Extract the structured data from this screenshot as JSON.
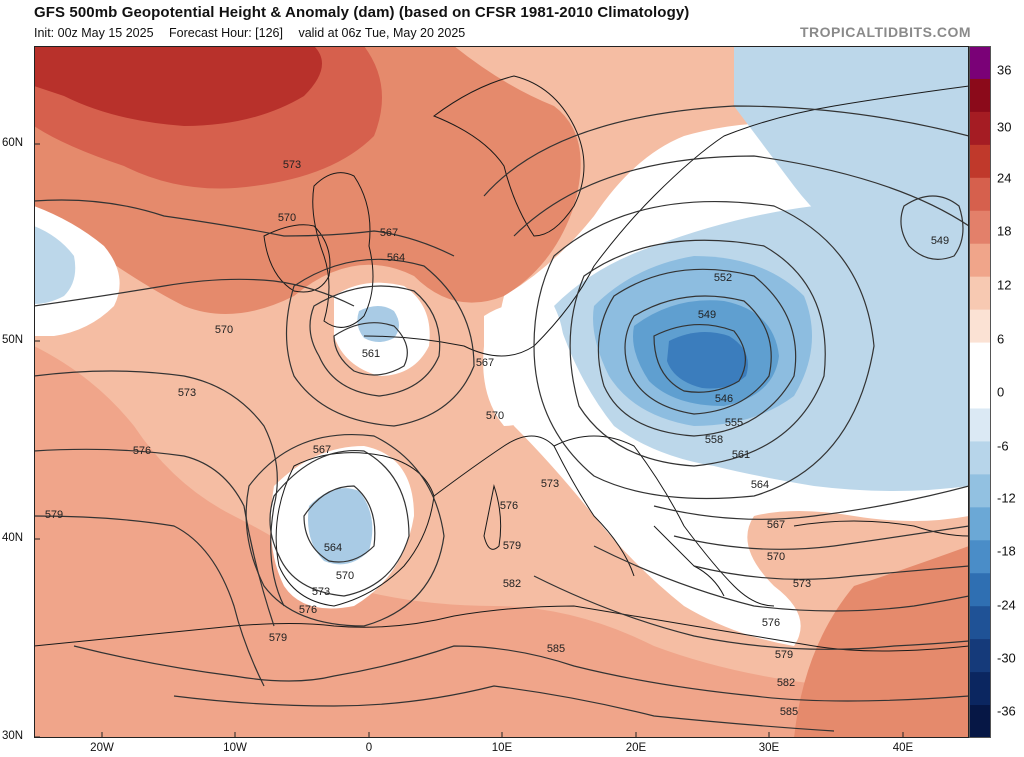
{
  "header": {
    "title": "GFS 500mb Geopotential Height & Anomaly (dam) (based on CFSR 1981-2010 Climatology)",
    "init": "Init: 00z May 15 2025",
    "forecast_hour": "Forecast Hour: [126]",
    "valid": "valid at 06z Tue, May 20 2025",
    "brand": "TROPICALTIDBITS.COM"
  },
  "axes": {
    "lat_labels": [
      "60N",
      "50N",
      "40N",
      "30N"
    ],
    "lon_labels": [
      "20W",
      "10W",
      "0",
      "10E",
      "20E",
      "30E",
      "40E"
    ]
  },
  "contours": {
    "labels": [
      "573",
      "570",
      "567",
      "564",
      "561",
      "570",
      "573",
      "576",
      "579",
      "567",
      "564",
      "570",
      "573",
      "576",
      "579",
      "567",
      "570",
      "573",
      "576",
      "579",
      "582",
      "585",
      "552",
      "549",
      "546",
      "555",
      "558",
      "561",
      "564",
      "567",
      "570",
      "573",
      "576",
      "579",
      "582",
      "585",
      "549"
    ]
  },
  "colorbar": {
    "labels": [
      "36",
      "30",
      "24",
      "18",
      "12",
      "6",
      "0",
      "-6",
      "-12",
      "-18",
      "-24",
      "-30",
      "-36"
    ],
    "colors": [
      "#7a0177",
      "#8b0a1a",
      "#a51c23",
      "#c0392b",
      "#d6604d",
      "#e3806a",
      "#f0a58a",
      "#f7c9b2",
      "#fbe2d4",
      "#ffffff",
      "#ffffff",
      "#dbe9f4",
      "#b7d5ea",
      "#92c1e1",
      "#6ba8d6",
      "#4a8dc8",
      "#2f6fb2",
      "#1f5296",
      "#153a7a",
      "#0b2660",
      "#061745"
    ]
  }
}
